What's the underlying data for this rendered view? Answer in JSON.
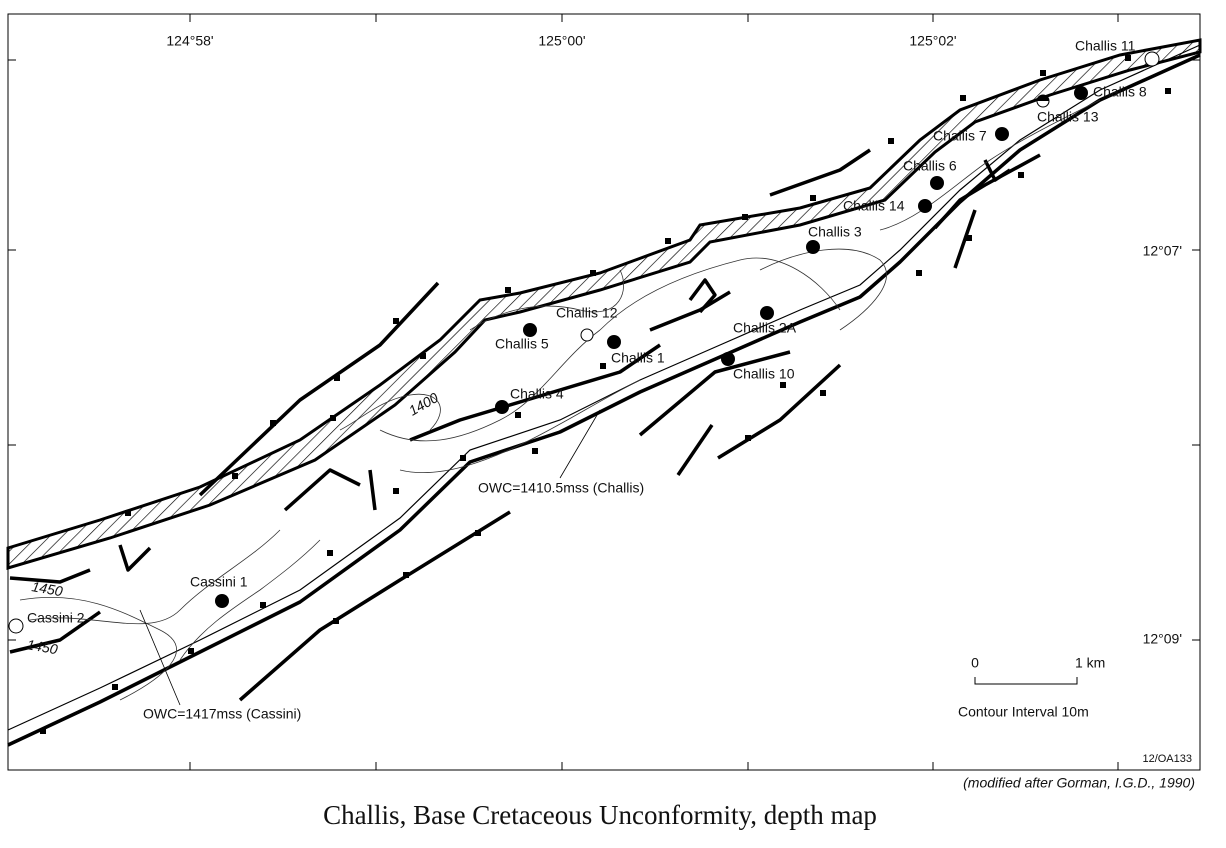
{
  "map": {
    "longitude_labels": [
      "124°58'",
      "125°00'",
      "125°02'"
    ],
    "latitude_labels": [
      "12°07'",
      "12°09'"
    ],
    "wells": [
      "Challis 11",
      "Challis 8",
      "Challis 13",
      "Challis 7",
      "Challis 6",
      "Challis 14",
      "Challis 3",
      "Challis 2A",
      "Challis 10",
      "Challis 1",
      "Challis 12",
      "Challis 5",
      "Challis 4",
      "Cassini 1",
      "Cassini 2"
    ],
    "contour_labels": [
      1400,
      1450,
      1450
    ],
    "annotations": [
      "OWC=1410.5mss (Challis)",
      "OWC=1417mss (Cassini)"
    ],
    "scale": {
      "start": 0,
      "end": "1 km"
    },
    "contour_interval": "Contour Interval 10m",
    "figure_code": "12/OA133"
  },
  "source": "(modified after Gorman, I.G.D., 1990)",
  "caption": "Challis, Base Cretaceous Unconformity, depth map"
}
